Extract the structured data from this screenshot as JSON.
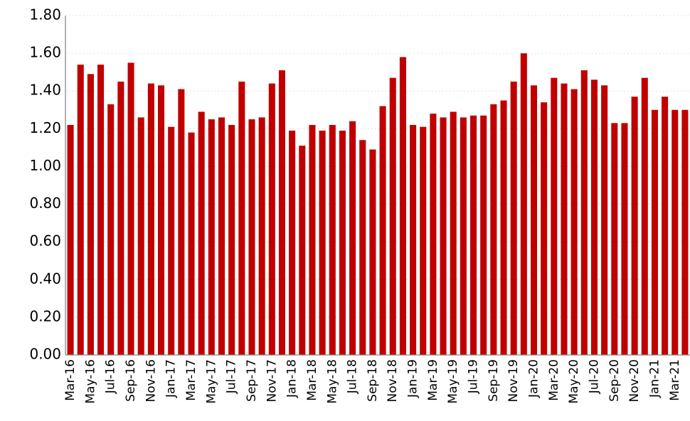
{
  "chart_data": {
    "type": "bar",
    "color": "#c00000",
    "grid": true,
    "categories": [
      "Mar-16",
      null,
      "May-16",
      null,
      "Jul-16",
      null,
      "Sep-16",
      null,
      "Nov-16",
      null,
      "Jan-17",
      null,
      "Mar-17",
      null,
      "May-17",
      null,
      "Jul-17",
      null,
      "Sep-17",
      null,
      "Nov-17",
      null,
      "Jan-18",
      null,
      "Mar-18",
      null,
      "May-18",
      null,
      "Jul-18",
      null,
      "Sep-18",
      null,
      "Nov-18",
      null,
      "Jan-19",
      null,
      "Mar-19",
      null,
      "May-19",
      null,
      "Jul-19",
      null,
      "Sep-19",
      null,
      "Nov-19",
      null,
      "Jan-20",
      null,
      "Mar-20",
      null,
      "May-20",
      null,
      "Jul-20",
      null,
      "Sep-20",
      null,
      "Nov-20",
      null,
      "Jan-21",
      null,
      "Mar-21",
      null
    ],
    "values": [
      1.22,
      1.54,
      1.49,
      1.54,
      1.33,
      1.45,
      1.55,
      1.26,
      1.44,
      1.43,
      1.21,
      1.41,
      1.18,
      1.29,
      1.25,
      1.26,
      1.22,
      1.45,
      1.25,
      1.26,
      1.44,
      1.51,
      1.19,
      1.11,
      1.22,
      1.19,
      1.22,
      1.19,
      1.24,
      1.14,
      1.09,
      1.32,
      1.47,
      1.58,
      1.22,
      1.21,
      1.28,
      1.26,
      1.29,
      1.26,
      1.27,
      1.27,
      1.33,
      1.35,
      1.45,
      1.6,
      1.43,
      1.34,
      1.47,
      1.44,
      1.41,
      1.51,
      1.46,
      1.43,
      1.23,
      1.23,
      1.37,
      1.47,
      1.3,
      1.37,
      1.3,
      1.3
    ],
    "ylim": [
      0,
      1.8
    ],
    "yticks": [
      {
        "value": 0,
        "label": "0.00"
      },
      {
        "value": 0.2,
        "label": "0.20"
      },
      {
        "value": 0.4,
        "label": "0.40"
      },
      {
        "value": 0.6,
        "label": "0.60"
      },
      {
        "value": 0.8,
        "label": "0.80"
      },
      {
        "value": 1,
        "label": "1.00"
      },
      {
        "value": 1.2,
        "label": "1.20"
      },
      {
        "value": 1.4,
        "label": "1.40"
      },
      {
        "value": 1.6,
        "label": "1.60"
      },
      {
        "value": 1.8,
        "label": "1.80"
      }
    ]
  }
}
